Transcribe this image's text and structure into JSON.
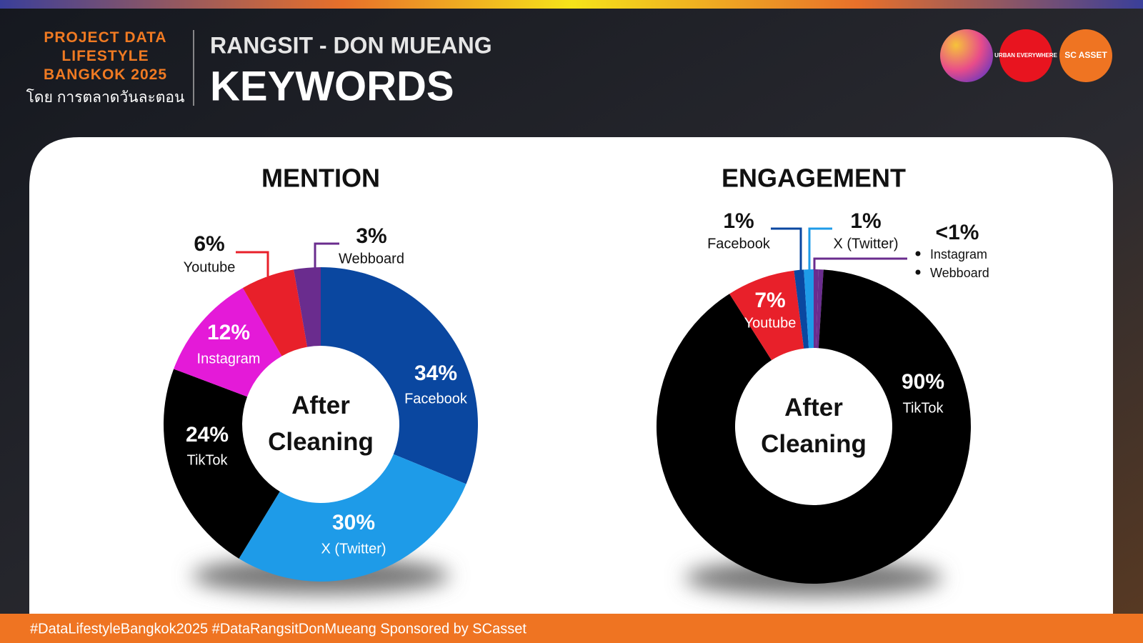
{
  "header": {
    "brand": "PROJECT DATA LIFESTYLE BANGKOK 2025",
    "byline": "โดย การตลาดวันละตอน",
    "area": "RANGSIT - DON MUEANG",
    "title": "KEYWORDS",
    "logos": [
      "URBAN EVERYWHERE",
      "SC ASSET"
    ]
  },
  "chart_data": [
    {
      "type": "donut",
      "title": "MENTION",
      "center_label": "After Cleaning",
      "categories": [
        "Facebook",
        "X (Twitter)",
        "TikTok",
        "Instagram",
        "Youtube",
        "Webboard"
      ],
      "values": [
        34,
        30,
        24,
        12,
        6,
        3
      ],
      "value_labels": [
        "34%",
        "30%",
        "24%",
        "12%",
        "6%",
        "3%"
      ],
      "colors": [
        "#0a47a0",
        "#1e9be8",
        "#000000",
        "#e41ad8",
        "#e8202a",
        "#6a2c8e"
      ]
    },
    {
      "type": "donut",
      "title": "ENGAGEMENT",
      "center_label": "After Cleaning",
      "categories": [
        "Instagram",
        "Webboard",
        "TikTok",
        "Youtube",
        "Facebook",
        "X (Twitter)"
      ],
      "values": [
        0.5,
        0.5,
        90,
        7,
        1,
        1
      ],
      "value_labels": [
        "<1%",
        null,
        "90%",
        "7%",
        "1%",
        "1%"
      ],
      "colors": [
        "#6a2c8e",
        "#6a2c8e",
        "#000000",
        "#e8202a",
        "#0a47a0",
        "#1e9be8"
      ]
    }
  ],
  "footer": {
    "text": "#DataLifestyleBangkok2025 #DataRangsitDonMueang Sponsored by SCasset"
  }
}
